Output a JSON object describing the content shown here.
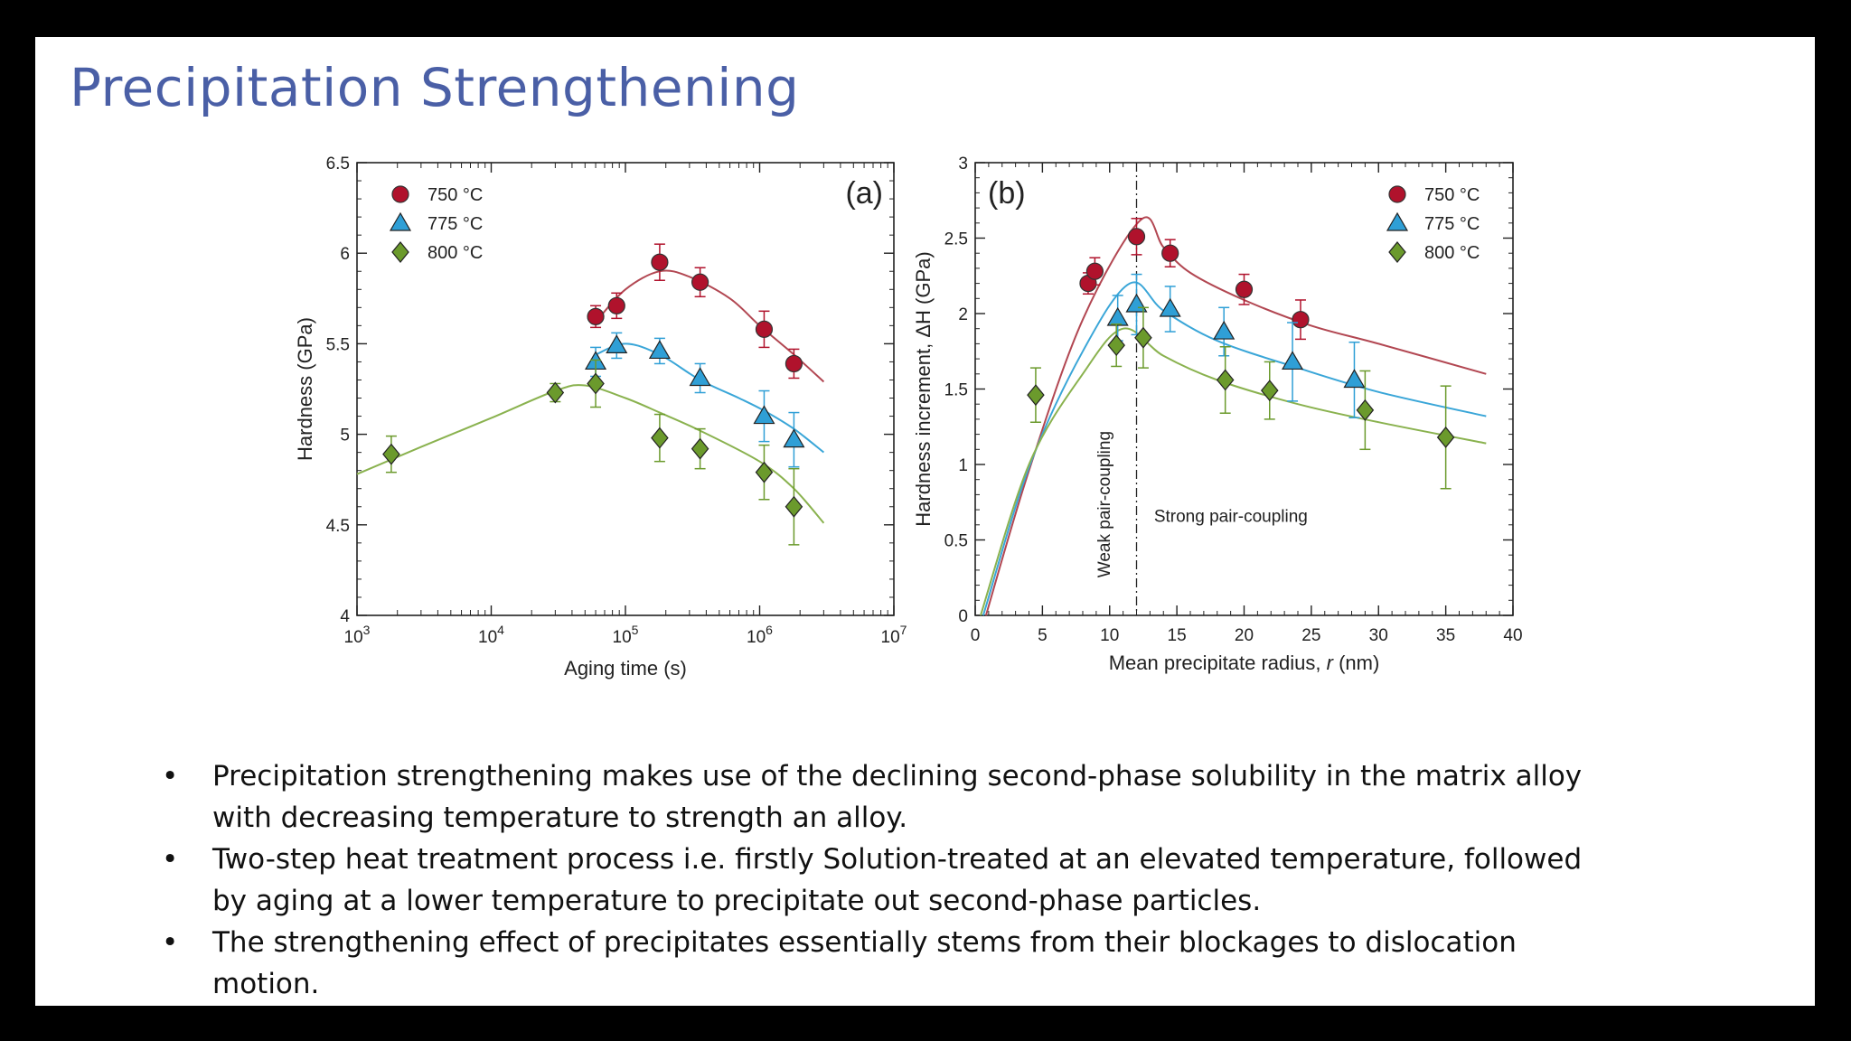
{
  "slide": {
    "title": "Precipitation Strengthening",
    "bullets": [
      "Precipitation strengthening makes use of the declining second-phase solubility in the matrix alloy with decreasing temperature to strength an alloy.",
      "Two-step heat treatment process i.e. firstly Solution-treated at an elevated temperature, followed by aging at a lower temperature to precipitate out second-phase particles.",
      "The strengthening effect of precipitates essentially stems from their blockages to dislocation motion."
    ],
    "bullet_symbol": "•"
  },
  "colors": {
    "title": "#4a5fa6",
    "750": "#b0122c",
    "775": "#2f9fd6",
    "800": "#6b9a2c",
    "fit_750": "#b24752",
    "fit_775": "#3aa6d8",
    "fit_800": "#8ab24f"
  },
  "chart_data": [
    {
      "type": "scatter",
      "panel_label": "(a)",
      "xlabel": "Aging time (s)",
      "ylabel": "Hardness (GPa)",
      "xscale": "log",
      "xlim": [
        1000,
        10000000
      ],
      "ylim": [
        4,
        6.5
      ],
      "xticks": [
        1000,
        10000,
        100000,
        1000000,
        10000000
      ],
      "xtick_labels": [
        {
          "base": "10",
          "exp": "3"
        },
        {
          "base": "10",
          "exp": "4"
        },
        {
          "base": "10",
          "exp": "5"
        },
        {
          "base": "10",
          "exp": "6"
        },
        {
          "base": "10",
          "exp": "7"
        }
      ],
      "yticks": [
        4,
        4.5,
        5,
        5.5,
        6,
        6.5
      ],
      "ytick_labels": [
        "4",
        "4.5",
        "5",
        "5.5",
        "6",
        "6.5"
      ],
      "legend": {
        "position": "top-left"
      },
      "series": [
        {
          "name": "750 °C",
          "marker": "circle",
          "color": "#b0122c",
          "x": [
            60000,
            86000,
            180000,
            360000,
            1080000,
            1800000
          ],
          "y": [
            5.65,
            5.71,
            5.95,
            5.84,
            5.58,
            5.39
          ],
          "err": [
            0.06,
            0.07,
            0.1,
            0.08,
            0.1,
            0.08
          ]
        },
        {
          "name": "775 °C",
          "marker": "triangle",
          "color": "#2f9fd6",
          "x": [
            60000,
            86000,
            180000,
            360000,
            1080000,
            1800000
          ],
          "y": [
            5.4,
            5.49,
            5.46,
            5.31,
            5.1,
            4.97
          ],
          "err": [
            0.08,
            0.07,
            0.07,
            0.08,
            0.14,
            0.15
          ]
        },
        {
          "name": "800 °C",
          "marker": "diamond",
          "color": "#6b9a2c",
          "x": [
            1800,
            30000,
            60000,
            180000,
            360000,
            1080000,
            1800000
          ],
          "y": [
            4.89,
            5.23,
            5.28,
            4.98,
            4.92,
            4.79,
            4.6
          ],
          "err": [
            0.1,
            0.05,
            0.13,
            0.13,
            0.11,
            0.15,
            0.21
          ]
        }
      ],
      "fits": [
        {
          "series": "750 °C",
          "color": "#b24752",
          "x": [
            60000,
            100000,
            180000,
            300000,
            600000,
            1000000,
            1800000,
            3000000
          ],
          "y": [
            5.62,
            5.8,
            5.9,
            5.87,
            5.75,
            5.6,
            5.44,
            5.29
          ]
        },
        {
          "series": "775 °C",
          "color": "#3aa6d8",
          "x": [
            60000,
            100000,
            180000,
            360000,
            700000,
            1080000,
            1800000,
            3000000
          ],
          "y": [
            5.44,
            5.5,
            5.44,
            5.3,
            5.2,
            5.13,
            5.03,
            4.9
          ]
        },
        {
          "series": "800 °C",
          "color": "#8ab24f",
          "x": [
            1000,
            3000,
            10000,
            30000,
            50000,
            100000,
            180000,
            360000,
            1000000,
            1800000,
            3000000
          ],
          "y": [
            4.78,
            4.93,
            5.09,
            5.24,
            5.27,
            5.2,
            5.12,
            5.02,
            4.85,
            4.7,
            4.51
          ]
        }
      ]
    },
    {
      "type": "scatter",
      "panel_label": "(b)",
      "xlabel": "Mean precipitate radius, r (nm)",
      "ylabel": "Hardness increment, ΔH (GPa)",
      "xlim": [
        0,
        40
      ],
      "ylim": [
        0,
        3
      ],
      "xticks": [
        0,
        5,
        10,
        15,
        20,
        25,
        30,
        35,
        40
      ],
      "yticks": [
        0,
        0.5,
        1,
        1.5,
        2,
        2.5,
        3
      ],
      "ytick_labels": [
        "0",
        "0.5",
        "1",
        "1.5",
        "2",
        "2.5",
        "3"
      ],
      "legend": {
        "position": "top-right"
      },
      "annotations": [
        {
          "text": "Weak pair-coupling",
          "x": 10,
          "y": 0.25,
          "rotation": -90
        },
        {
          "text": "Strong pair-coupling",
          "x": 13.3,
          "y": 0.62
        }
      ],
      "divider_x": 12,
      "series": [
        {
          "name": "750 °C",
          "marker": "circle",
          "color": "#b0122c",
          "x": [
            8.4,
            8.9,
            12,
            14.5,
            20,
            24.2
          ],
          "y": [
            2.2,
            2.28,
            2.51,
            2.4,
            2.16,
            1.96
          ],
          "err": [
            0.07,
            0.09,
            0.12,
            0.09,
            0.1,
            0.13
          ]
        },
        {
          "name": "775 °C",
          "marker": "triangle",
          "color": "#2f9fd6",
          "x": [
            10.6,
            12,
            14.5,
            18.5,
            23.6,
            28.2
          ],
          "y": [
            1.97,
            2.06,
            2.03,
            1.88,
            1.68,
            1.56
          ],
          "err": [
            0.15,
            0.2,
            0.15,
            0.16,
            0.26,
            0.25
          ]
        },
        {
          "name": "800 °C",
          "marker": "diamond",
          "color": "#6b9a2c",
          "x": [
            4.5,
            10.5,
            12.5,
            18.6,
            21.9,
            29,
            35
          ],
          "y": [
            1.46,
            1.79,
            1.84,
            1.56,
            1.49,
            1.36,
            1.18
          ],
          "err": [
            0.18,
            0.14,
            0.2,
            0.22,
            0.19,
            0.26,
            0.34
          ]
        }
      ],
      "fits": [
        {
          "series": "750 °C",
          "color": "#b24752",
          "x": [
            0.8,
            4,
            8,
            12.3,
            14,
            16,
            20,
            25,
            30,
            38
          ],
          "y": [
            0,
            0.96,
            1.96,
            2.62,
            2.44,
            2.27,
            2.09,
            1.92,
            1.8,
            1.6
          ]
        },
        {
          "series": "775 °C",
          "color": "#3aa6d8",
          "x": [
            0.6,
            4,
            8,
            11.5,
            14,
            18,
            24,
            30,
            38
          ],
          "y": [
            0,
            0.98,
            1.75,
            2.2,
            2.02,
            1.82,
            1.64,
            1.48,
            1.32
          ]
        },
        {
          "series": "800 °C",
          "color": "#8ab24f",
          "x": [
            0.4,
            4,
            8,
            11,
            14,
            18,
            24,
            30,
            38
          ],
          "y": [
            0,
            1.0,
            1.6,
            1.9,
            1.72,
            1.56,
            1.4,
            1.28,
            1.14
          ]
        }
      ]
    }
  ]
}
